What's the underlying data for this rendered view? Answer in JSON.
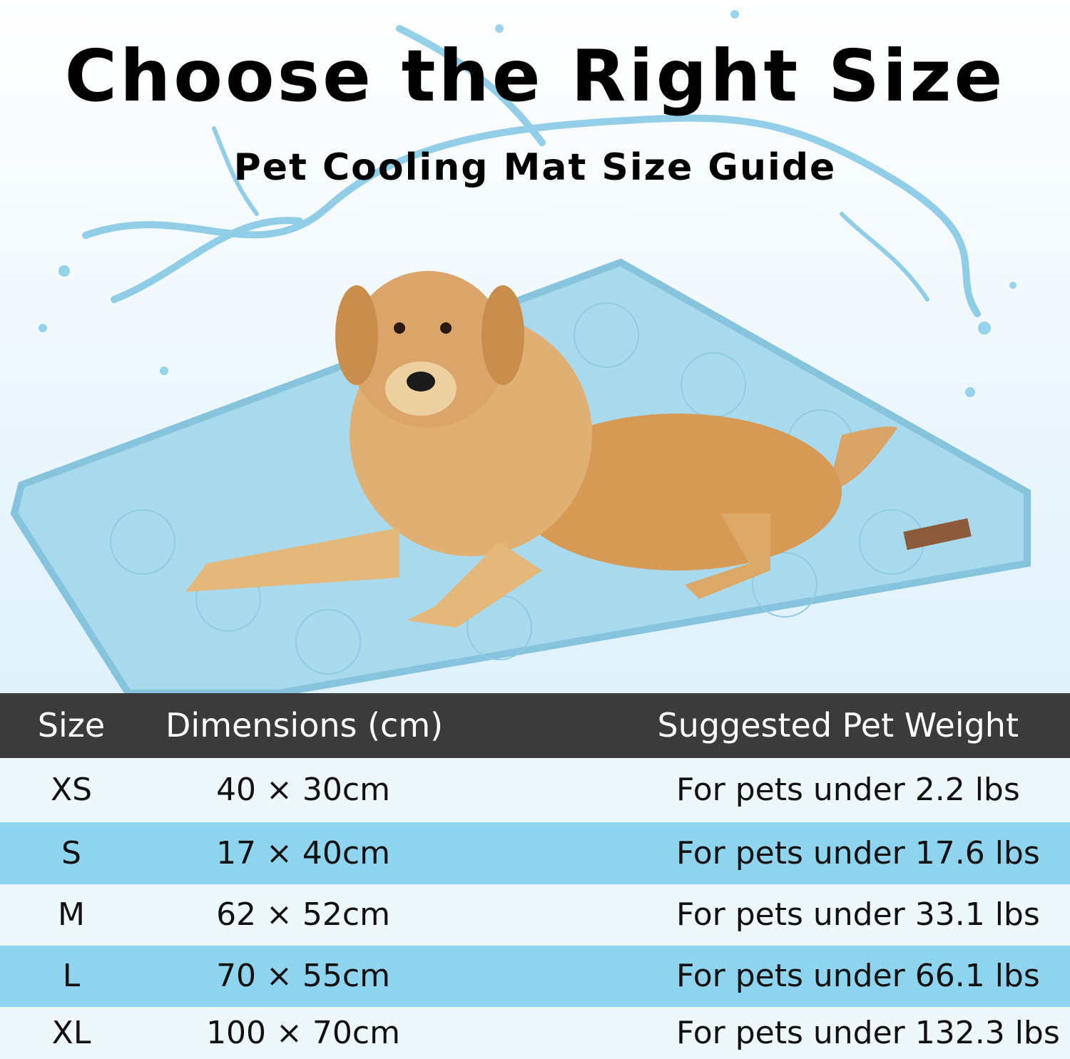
{
  "header": {
    "title": "Choose the Right Size",
    "subtitle": "Pet Cooling Mat Size Guide"
  },
  "table": {
    "columns": [
      "Size",
      "Dimensions (cm)",
      "Suggested Pet Weight"
    ],
    "rows": [
      [
        "XS",
        "40 × 30cm",
        "For pets under 2.2 lbs"
      ],
      [
        "S",
        "17 × 40cm",
        "For pets under 17.6 lbs"
      ],
      [
        "M",
        "62 × 52cm",
        "For pets under 33.1 lbs"
      ],
      [
        "L",
        "70 × 55cm",
        "For pets under 66.1 lbs"
      ],
      [
        "XL",
        "100 × 70cm",
        "For pets under 132.3 lbs"
      ]
    ]
  }
}
